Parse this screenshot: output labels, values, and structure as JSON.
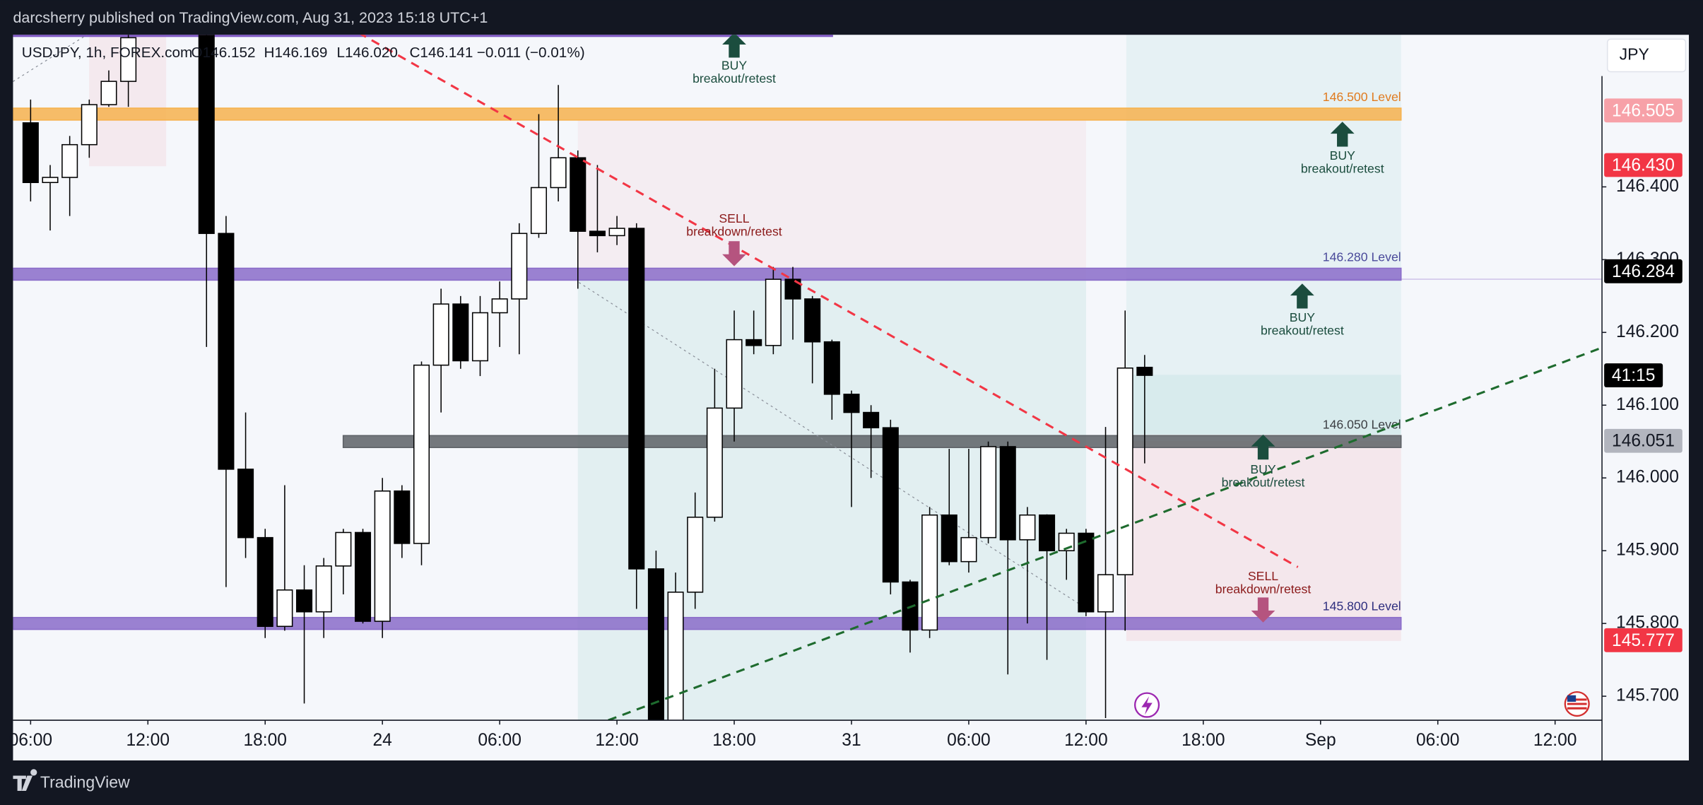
{
  "chart_data": {
    "type": "candlestick",
    "title": "darcsherry published on TradingView.com, Aug 31, 2023 15:18 UTC+1",
    "symbol": "USDJPY, 1h, FOREX.com",
    "legend_values": [
      "O146.152",
      "H146.169",
      "L146.020",
      "C146.141",
      "−0.011 (−0.01%)"
    ],
    "currency": "JPY",
    "brand": "TradingView",
    "countdown": "41:15",
    "up_color": "#ffffff",
    "down_color": "#000000",
    "x": [
      6,
      7,
      8,
      9,
      10,
      11,
      15,
      16,
      17,
      18,
      19,
      20,
      21,
      22,
      23,
      24,
      25,
      26,
      27,
      28,
      29,
      30,
      31,
      32,
      33,
      34,
      35,
      36,
      37,
      38,
      39,
      40,
      41,
      42,
      43,
      44,
      45,
      46,
      47,
      48,
      49,
      50,
      51,
      52,
      53,
      54,
      55,
      56,
      57,
      58,
      59,
      60,
      61,
      62,
      63
    ],
    "open": [
      146.488,
      146.406,
      146.413,
      146.458,
      146.513,
      146.545,
      146.65,
      146.336,
      146.012,
      145.918,
      145.796,
      145.846,
      145.816,
      145.879,
      145.925,
      145.803,
      145.982,
      145.91,
      146.155,
      146.239,
      146.161,
      146.227,
      146.246,
      146.336,
      146.399,
      146.44,
      146.339,
      146.333,
      146.343,
      145.875,
      145.64,
      145.843,
      145.946,
      146.096,
      146.19,
      146.182,
      146.273,
      146.246,
      146.187,
      146.115,
      146.09,
      146.069,
      145.857,
      145.791,
      145.949,
      145.885,
      145.918,
      146.043,
      145.915,
      145.949,
      145.9,
      145.924,
      145.816,
      145.867,
      146.152
    ],
    "high": [
      146.52,
      146.43,
      146.47,
      146.52,
      146.56,
      146.62,
      146.66,
      146.36,
      146.09,
      145.93,
      145.99,
      145.88,
      145.89,
      145.93,
      145.93,
      146.0,
      145.99,
      146.16,
      146.26,
      146.25,
      146.25,
      146.27,
      146.35,
      146.5,
      146.54,
      146.45,
      146.43,
      146.36,
      146.35,
      145.9,
      145.87,
      145.98,
      146.15,
      146.23,
      146.23,
      146.29,
      146.29,
      146.25,
      146.19,
      146.12,
      146.1,
      146.08,
      145.86,
      145.96,
      146.04,
      146.04,
      146.05,
      146.05,
      145.96,
      145.95,
      145.93,
      145.93,
      146.07,
      146.23,
      146.169
    ],
    "low": [
      146.38,
      146.34,
      146.36,
      146.44,
      146.51,
      146.51,
      146.18,
      145.85,
      145.89,
      145.78,
      145.79,
      145.69,
      145.78,
      145.84,
      145.8,
      145.78,
      145.89,
      145.88,
      146.09,
      146.15,
      146.14,
      146.18,
      146.17,
      146.33,
      146.38,
      146.26,
      146.31,
      146.32,
      145.82,
      145.6,
      145.6,
      145.82,
      145.94,
      146.05,
      146.17,
      146.17,
      146.19,
      146.13,
      146.08,
      145.96,
      146.0,
      145.84,
      145.76,
      145.78,
      145.88,
      145.87,
      145.91,
      145.73,
      145.8,
      145.75,
      145.86,
      145.81,
      145.67,
      145.79,
      146.02
    ],
    "close": [
      146.406,
      146.413,
      146.458,
      146.513,
      146.545,
      146.605,
      146.336,
      146.012,
      145.918,
      145.796,
      145.846,
      145.816,
      145.879,
      145.925,
      145.803,
      145.982,
      145.91,
      146.155,
      146.239,
      146.161,
      146.227,
      146.246,
      146.336,
      146.399,
      146.44,
      146.339,
      146.333,
      146.343,
      145.875,
      145.64,
      145.843,
      145.946,
      146.096,
      146.19,
      146.182,
      146.273,
      146.246,
      146.187,
      146.115,
      146.09,
      146.069,
      145.857,
      145.791,
      145.949,
      145.885,
      145.918,
      146.043,
      145.915,
      145.949,
      145.9,
      145.924,
      145.816,
      145.867,
      146.151,
      146.141
    ],
    "xlim": [
      5.1,
      86.4
    ],
    "ylim": [
      145.667,
      146.609
    ],
    "xticks": [
      {
        "value": 6,
        "label": "06:00"
      },
      {
        "value": 12,
        "label": "12:00"
      },
      {
        "value": 18,
        "label": "18:00"
      },
      24,
      {
        "value": 30,
        "label": "06:00"
      },
      {
        "value": 36,
        "label": "12:00"
      },
      {
        "value": 42,
        "label": "18:00"
      },
      {
        "value": 48,
        "label": "31"
      },
      {
        "value": 54,
        "label": "06:00"
      },
      {
        "value": 60,
        "label": "12:00"
      },
      {
        "value": 66,
        "label": "18:00"
      },
      {
        "value": 72,
        "label": "Sep"
      },
      {
        "value": 78,
        "label": "06:00"
      },
      {
        "value": 84,
        "label": "12:00"
      }
    ],
    "yticks": [
      {
        "value": 146.4,
        "label": "146.400"
      },
      {
        "value": 146.3,
        "label": "146.300"
      },
      {
        "value": 146.2,
        "label": "146.200"
      },
      {
        "value": 146.1,
        "label": "146.100"
      },
      {
        "value": 146,
        "label": "146.000"
      },
      {
        "value": 145.9,
        "label": "145.900"
      },
      {
        "value": 145.8,
        "label": "145.800"
      },
      {
        "value": 145.7,
        "label": "145.700"
      }
    ],
    "levels": [
      {
        "value": 146.5,
        "label": "146.500 Level",
        "color": "#f6b24d",
        "text_color": "#e07b1f"
      },
      {
        "value": 146.28,
        "label": "146.280 Level",
        "color": "#8a6cc9",
        "text_color": "#4a4a9a"
      },
      {
        "value": 146.05,
        "label": "146.050 Level",
        "color": "#5d6166",
        "text_color": "#3c3f44"
      },
      {
        "value": 145.8,
        "label": "145.800 Level",
        "color": "#8a6cc9",
        "text_color": "#2f2f7f"
      }
    ],
    "annotations": [
      {
        "title": "BUY",
        "text": "breakout/retest"
      },
      {
        "title": "BUY",
        "text": "breakout/retest"
      },
      {
        "title": "SELL",
        "text": "breakdown/retest"
      },
      {
        "title": "BUY",
        "text": "breakout/retest"
      },
      {
        "title": "BUY",
        "text": "breakout/retest"
      },
      {
        "title": "SELL",
        "text": "breakdown/retest"
      }
    ],
    "price_tags": [
      {
        "value": 146.505,
        "color": "#f7a1a8",
        "text_color": "#ffffff"
      },
      {
        "value": 146.43,
        "label": "146.430",
        "color": "#f23645",
        "text_color": "#ffffff"
      },
      {
        "value": 146.284,
        "color": "#000000",
        "text_color": "#ffffff"
      },
      {
        "value": 146.051,
        "color": "#b2b5be",
        "text_color": "#131722"
      },
      {
        "value": 145.777,
        "color": "#f23645",
        "text_color": "#ffffff"
      }
    ]
  }
}
